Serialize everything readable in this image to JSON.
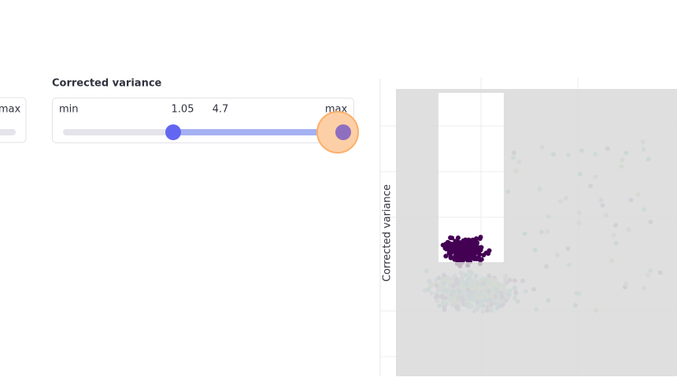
{
  "left_slider": {
    "max_label": "max"
  },
  "slider": {
    "title": "Corrected variance",
    "min_label": "min",
    "low": 1.05,
    "high": 4.7,
    "max_label": "max"
  },
  "plot": {
    "y_axis_label": "Corrected variance"
  }
}
